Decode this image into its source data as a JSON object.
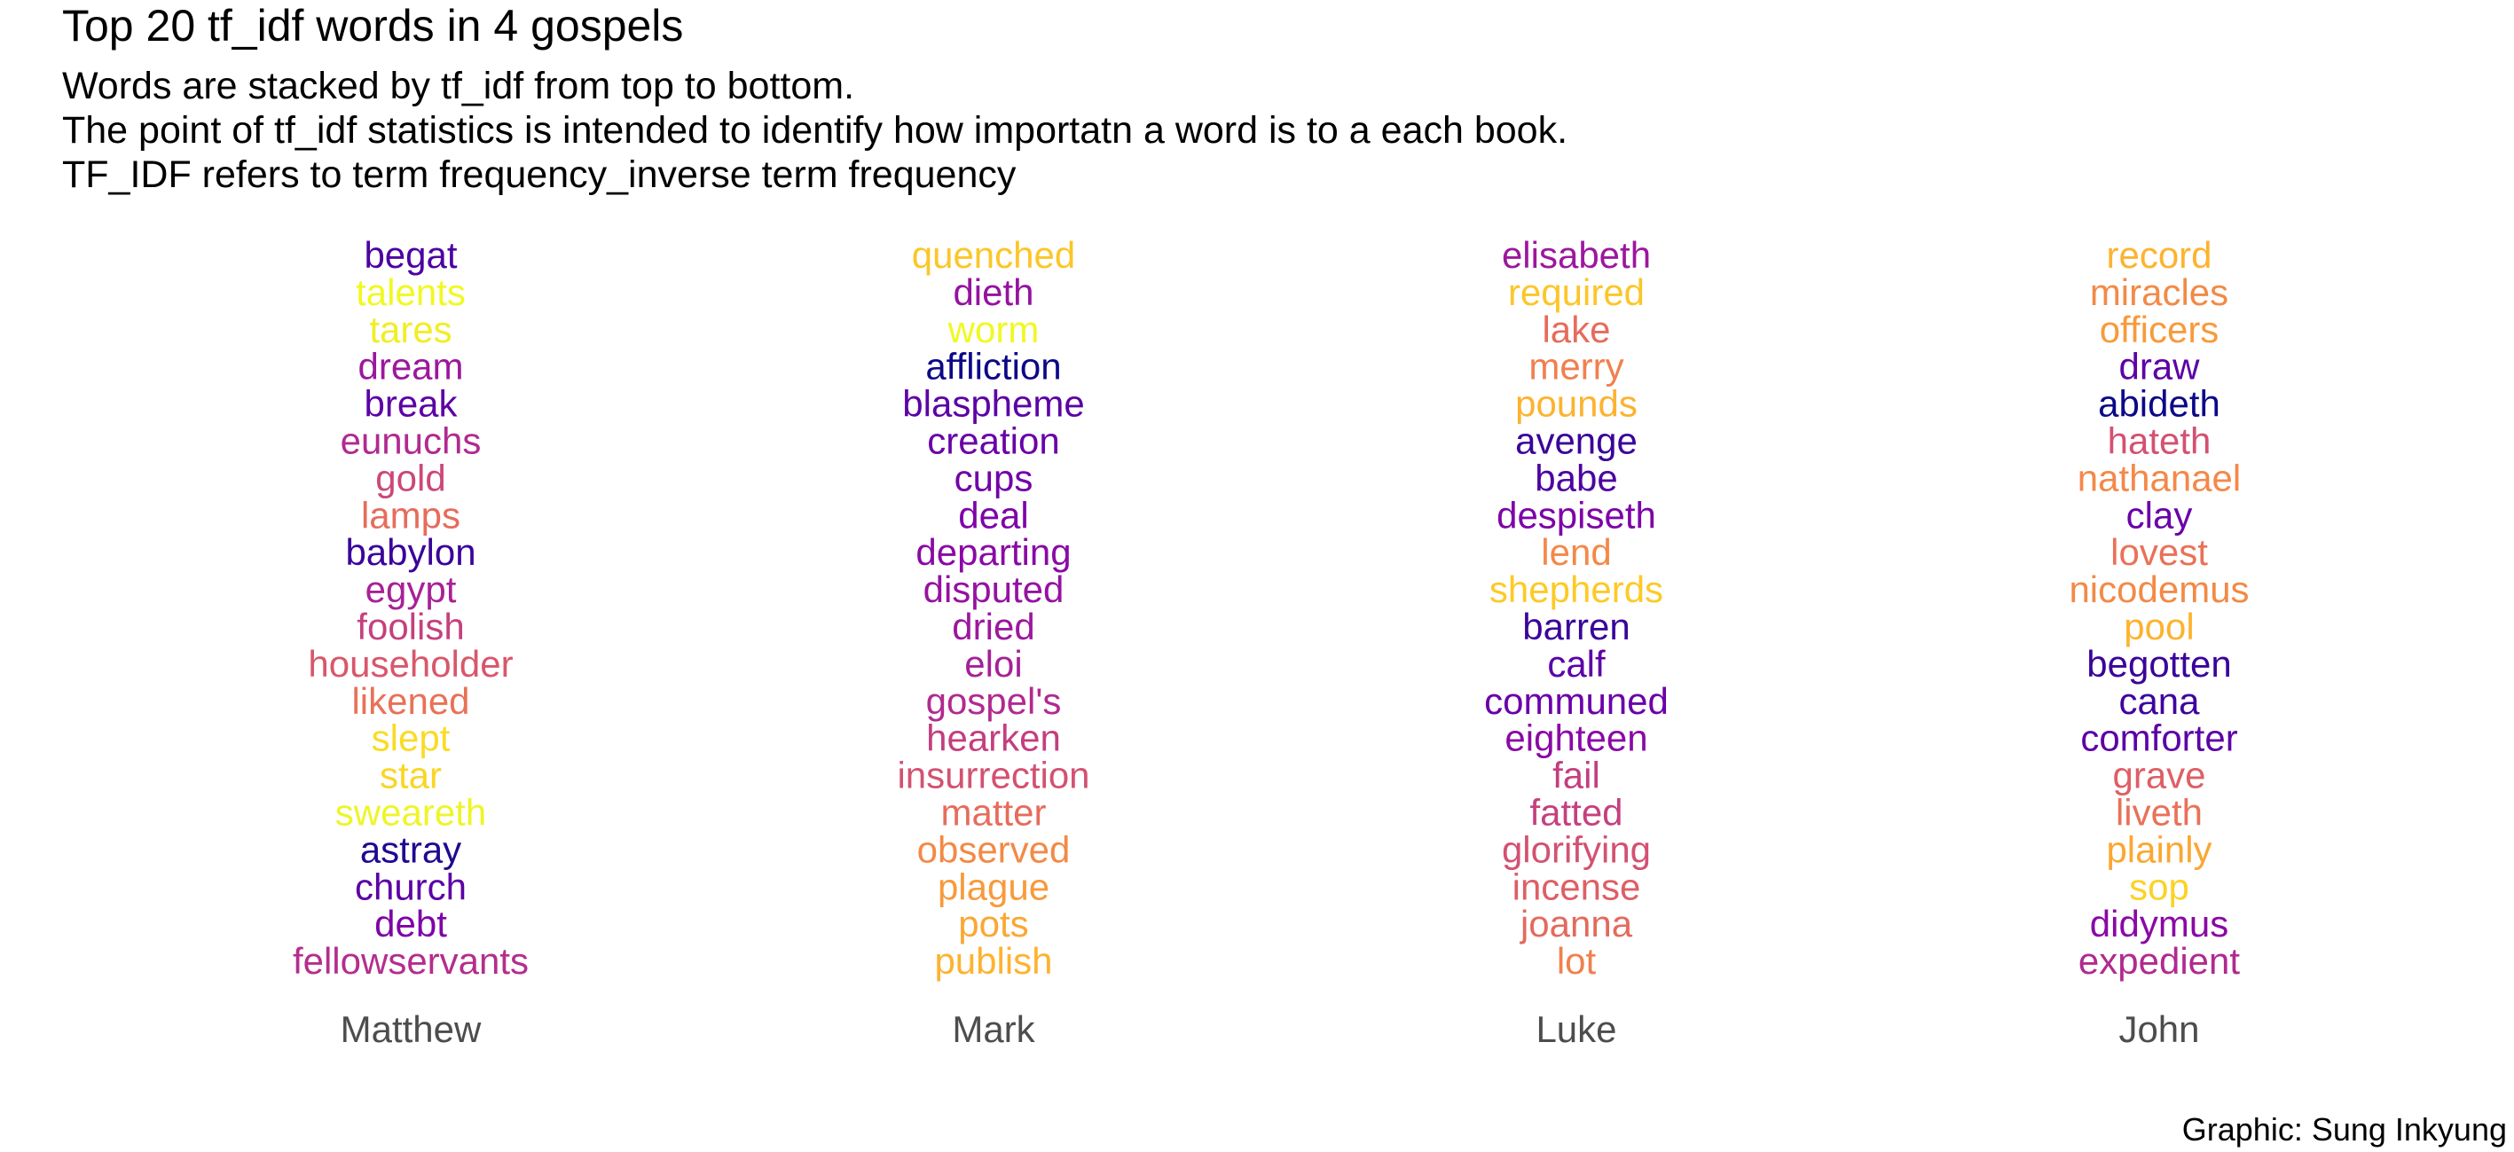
{
  "title": "Top 20 tf_idf words in 4 gospels",
  "subtitle_lines": [
    "Words are stacked by tf_idf from top to bottom.",
    "The point of tf_idf statistics is intended to identify how importatn a word is to a each book.",
    "TF_IDF refers to term frequency_inverse term frequency"
  ],
  "caption": "Graphic: Sung Inkyung",
  "chart_data": {
    "type": "text-stack",
    "title": "Top 20 tf_idf words in 4 gospels",
    "ordering": "descending tf_idf, top to bottom",
    "color_scale": "plasma",
    "grid": false,
    "legend": "none",
    "categories": [
      "Matthew",
      "Mark",
      "Luke",
      "John"
    ],
    "series": [
      {
        "name": "Matthew",
        "words": [
          "begat",
          "talents",
          "tares",
          "dream",
          "break",
          "eunuchs",
          "gold",
          "lamps",
          "babylon",
          "egypt",
          "foolish",
          "householder",
          "likened",
          "slept",
          "star",
          "sweareth",
          "astray",
          "church",
          "debt",
          "fellowservants"
        ],
        "colors": [
          "#4c02a1",
          "#f0f921",
          "#f1ee24",
          "#9c179e",
          "#5c01a6",
          "#b12a90",
          "#cc4778",
          "#e66c5c",
          "#3a049a",
          "#a72197",
          "#c5407e",
          "#d8576b",
          "#e97158",
          "#fadb24",
          "#fbd524",
          "#eef528",
          "#1e0a91",
          "#5c01a6",
          "#7e03a8",
          "#b42e8d"
        ]
      },
      {
        "name": "Mark",
        "words": [
          "quenched",
          "dieth",
          "worm",
          "affliction",
          "blaspheme",
          "creation",
          "cups",
          "deal",
          "departing",
          "disputed",
          "dried",
          "eloi",
          "gospel's",
          "hearken",
          "insurrection",
          "matter",
          "observed",
          "plague",
          "pots",
          "publish"
        ],
        "colors": [
          "#fcc628",
          "#9512a1",
          "#f0f921",
          "#0d0887",
          "#5c01a6",
          "#6a00a8",
          "#7201a8",
          "#7e03a8",
          "#8a09a5",
          "#9512a1",
          "#9c179e",
          "#a62098",
          "#b12a90",
          "#c43e7f",
          "#d35171",
          "#e66c5c",
          "#f28a46",
          "#f89a3b",
          "#fba732",
          "#fdb32f"
        ]
      },
      {
        "name": "Luke",
        "words": [
          "elisabeth",
          "required",
          "lake",
          "merry",
          "pounds",
          "avenge",
          "babe",
          "despiseth",
          "lend",
          "shepherds",
          "barren",
          "calf",
          "communed",
          "eighteen",
          "fail",
          "fatted",
          "glorifying",
          "incense",
          "joanna",
          "lot"
        ],
        "colors": [
          "#9c179e",
          "#fcc628",
          "#e66c5c",
          "#f0804e",
          "#fdb32f",
          "#3a049a",
          "#4c02a1",
          "#7e03a8",
          "#f48849",
          "#fdca26",
          "#3a049a",
          "#5c01a6",
          "#6a00a8",
          "#8a09a5",
          "#c43e7f",
          "#c5407e",
          "#d35171",
          "#de5f65",
          "#e36a5d",
          "#f0804e"
        ]
      },
      {
        "name": "John",
        "words": [
          "record",
          "miracles",
          "officers",
          "draw",
          "abideth",
          "hateth",
          "nathanael",
          "clay",
          "lovest",
          "nicodemus",
          "pool",
          "begotten",
          "cana",
          "comforter",
          "grave",
          "liveth",
          "plainly",
          "sop",
          "didymus",
          "expedient"
        ],
        "colors": [
          "#fdb32f",
          "#f28a46",
          "#f89a3b",
          "#5c01a6",
          "#0d0887",
          "#d35171",
          "#f48849",
          "#6a00a8",
          "#e97158",
          "#f28a46",
          "#fdb32f",
          "#3a049a",
          "#3e049c",
          "#5c01a6",
          "#de5f65",
          "#e97158",
          "#fba732",
          "#fcd225",
          "#8a09a5",
          "#b12a90"
        ]
      }
    ]
  }
}
